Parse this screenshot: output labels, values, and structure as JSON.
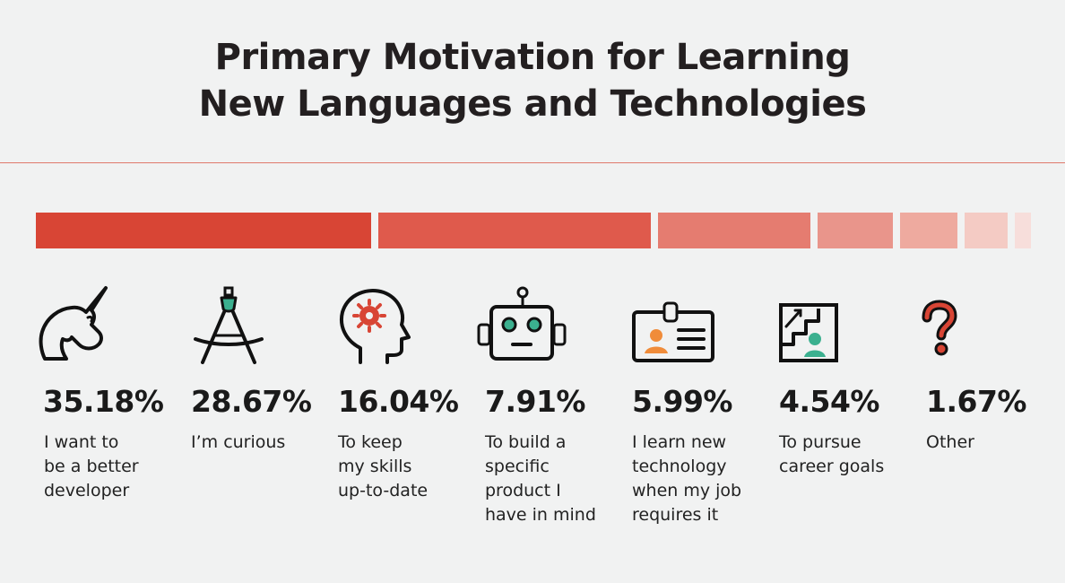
{
  "title_lines": [
    "Primary Motivation for Learning",
    "New Languages and Technologies"
  ],
  "chart_data": {
    "type": "bar",
    "title": "Primary Motivation for Learning New Languages and Technologies",
    "categories": [
      "I want to be a better developer",
      "I’m curious",
      "To keep my skills up-to-date",
      "To build a specific product I have in mind",
      "I learn new technology when my job requires it",
      "To pursue career goals",
      "Other"
    ],
    "values": [
      35.18,
      28.67,
      16.04,
      7.91,
      5.99,
      4.54,
      1.67
    ],
    "unit": "%",
    "segment_colors": [
      "#d84535",
      "#df5a4c",
      "#e57c70",
      "#e9958b",
      "#eeaa9f",
      "#f4cbc4",
      "#f7dedb"
    ]
  },
  "items": [
    {
      "value_text": "35.18%",
      "label_lines": [
        "I want to",
        "be a better",
        "developer"
      ],
      "icon": "unicorn-icon"
    },
    {
      "value_text": "28.67%",
      "label_lines": [
        "I’m curious"
      ],
      "icon": "compass-icon"
    },
    {
      "value_text": "16.04%",
      "label_lines": [
        "To keep",
        "my skills",
        "up-to-date"
      ],
      "icon": "head-gear-icon"
    },
    {
      "value_text": "7.91%",
      "label_lines": [
        "To build a",
        "specific",
        "product I",
        "have in mind"
      ],
      "icon": "robot-icon"
    },
    {
      "value_text": "5.99%",
      "label_lines": [
        "I learn new",
        "technology",
        "when my job",
        "requires it"
      ],
      "icon": "id-badge-icon"
    },
    {
      "value_text": "4.54%",
      "label_lines": [
        "To pursue",
        "career goals"
      ],
      "icon": "career-stairs-icon"
    },
    {
      "value_text": "1.67%",
      "label_lines": [
        "Other"
      ],
      "icon": "question-mark-icon"
    }
  ],
  "colors": {
    "accent": "#d84535",
    "icon_green": "#3bb08f",
    "icon_orange": "#f08c3a",
    "icon_red": "#d84535",
    "text": "#1a1a1a"
  }
}
